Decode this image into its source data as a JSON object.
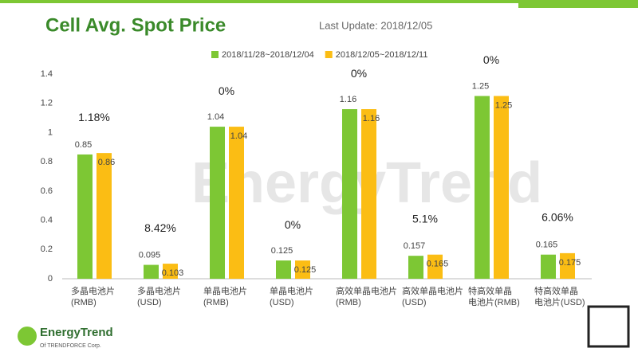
{
  "chart_data": {
    "type": "bar",
    "title": "Cell Avg. Spot Price",
    "subtitle": "Last Update: 2018/12/05",
    "categories": [
      [
        "多晶电池片",
        "(RMB)"
      ],
      [
        "多晶电池片",
        "(USD)"
      ],
      [
        "单晶电池片",
        "(RMB)"
      ],
      [
        "单晶电池片",
        "(USD)"
      ],
      [
        "高效单晶电池片",
        "(RMB)"
      ],
      [
        "高效单晶电池片",
        "(USD)"
      ],
      [
        "特高效单晶",
        "电池片(RMB)"
      ],
      [
        "特高效单晶",
        "电池片(USD)"
      ]
    ],
    "series": [
      {
        "name": "2018/11/28~2018/12/04",
        "color": "#7dc734",
        "values": [
          0.85,
          0.095,
          1.04,
          0.125,
          1.16,
          0.157,
          1.25,
          0.165
        ]
      },
      {
        "name": "2018/12/05~2018/12/11",
        "color": "#fbbd14",
        "values": [
          0.86,
          0.103,
          1.04,
          0.125,
          1.16,
          0.165,
          1.25,
          0.175
        ]
      }
    ],
    "annotations": [
      "1.18%",
      "8.42%",
      "0%",
      "0%",
      "0%",
      "5.1%",
      "0%",
      "6.06%"
    ],
    "ylim": [
      0,
      1.4
    ],
    "yticks": [
      0,
      0.2,
      0.4,
      0.6,
      0.8,
      1,
      1.2,
      1.4
    ],
    "grid": false,
    "legend": "top"
  },
  "watermark": "EnergyTrend",
  "logo": {
    "name": "EnergyTrend",
    "sub": "Of TRENDFORCE Corp."
  }
}
